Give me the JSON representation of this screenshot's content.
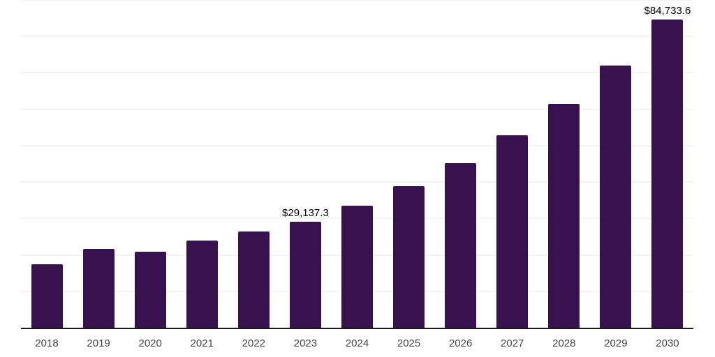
{
  "chart_data": {
    "type": "bar",
    "title": "",
    "xlabel": "",
    "ylabel": "",
    "categories": [
      "2018",
      "2019",
      "2020",
      "2021",
      "2022",
      "2023",
      "2024",
      "2025",
      "2026",
      "2027",
      "2028",
      "2029",
      "2030"
    ],
    "values": [
      17400,
      21700,
      20900,
      24000,
      26400,
      29137.3,
      33600,
      38900,
      45200,
      52800,
      61400,
      72000,
      84733.6
    ],
    "data_labels": [
      {
        "category": "2023",
        "text": "$29,137.3"
      },
      {
        "category": "2030",
        "text": "$84,733.6"
      }
    ],
    "ylim": [
      0,
      90000
    ],
    "gridline_interval": 10000,
    "grid": true,
    "legend": false,
    "y_axis_labels_visible": false,
    "colors": {
      "bar": "#38124f",
      "axis": "#1a1a1a",
      "gridline": "#f3f3f3",
      "tick_label": "#444444",
      "value_label": "#000000",
      "background": "#ffffff"
    }
  }
}
